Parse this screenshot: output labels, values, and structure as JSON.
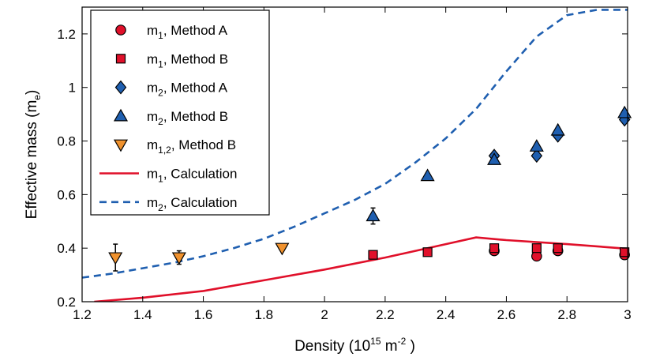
{
  "chart_data": {
    "type": "scatter",
    "title": "",
    "xlabel": {
      "prefix": "Density (10",
      "exp": "15",
      "mid": " m",
      "exp2": "-2",
      "suffix": " )"
    },
    "ylabel": {
      "base": "Effective mass (m",
      "sub": "e",
      "suffix": ")"
    },
    "xlim": [
      1.2,
      3.0
    ],
    "ylim": [
      0.2,
      1.3
    ],
    "xticks": [
      "1.2",
      "1.4",
      "1.6",
      "1.8",
      "2",
      "2.2",
      "2.4",
      "2.6",
      "2.8",
      "3"
    ],
    "yticks": [
      "0.2",
      "0.4",
      "0.6",
      "0.8",
      "1",
      "1.2"
    ],
    "xtick_values": [
      1.2,
      1.4,
      1.6,
      1.8,
      2.0,
      2.2,
      2.4,
      2.6,
      2.8,
      3.0
    ],
    "ytick_values": [
      0.2,
      0.4,
      0.6,
      0.8,
      1.0,
      1.2
    ],
    "legend_position": "top-left",
    "series": [
      {
        "name": "m1, Method A",
        "label_base": "m",
        "label_sub": "1",
        "label_rest": ", Method A",
        "marker": "circle",
        "color": "#e0102a",
        "points": [
          [
            2.56,
            0.39
          ],
          [
            2.7,
            0.37
          ],
          [
            2.77,
            0.39
          ],
          [
            2.99,
            0.375
          ]
        ],
        "errors": [
          0,
          0,
          0,
          0
        ]
      },
      {
        "name": "m1, Method B",
        "label_base": "m",
        "label_sub": "1",
        "label_rest": ", Method B",
        "marker": "square",
        "color": "#e0102a",
        "points": [
          [
            2.16,
            0.375
          ],
          [
            2.34,
            0.385
          ],
          [
            2.56,
            0.4
          ],
          [
            2.7,
            0.4
          ],
          [
            2.77,
            0.4
          ],
          [
            2.99,
            0.385
          ]
        ],
        "errors": [
          0.015,
          0,
          0,
          0,
          0,
          0
        ]
      },
      {
        "name": "m2, Method A",
        "label_base": "m",
        "label_sub": "2",
        "label_rest": ", Method A",
        "marker": "diamond",
        "color": "#1f5fb0",
        "points": [
          [
            2.56,
            0.745
          ],
          [
            2.7,
            0.745
          ],
          [
            2.77,
            0.82
          ],
          [
            2.99,
            0.88
          ]
        ],
        "errors": [
          0,
          0,
          0,
          0
        ]
      },
      {
        "name": "m2, Method B",
        "label_base": "m",
        "label_sub": "2",
        "label_rest": ", Method B",
        "marker": "triangle-up",
        "color": "#1f5fb0",
        "points": [
          [
            2.16,
            0.52
          ],
          [
            2.34,
            0.67
          ],
          [
            2.56,
            0.73
          ],
          [
            2.7,
            0.78
          ],
          [
            2.77,
            0.84
          ],
          [
            2.99,
            0.905
          ]
        ],
        "errors": [
          0.03,
          0,
          0,
          0,
          0,
          0
        ]
      },
      {
        "name": "m1,2, Method B",
        "label_base": "m",
        "label_sub": "1,2",
        "label_rest": ", Method B",
        "marker": "triangle-down",
        "color": "#f0922e",
        "points": [
          [
            1.31,
            0.365
          ],
          [
            1.52,
            0.365
          ],
          [
            1.86,
            0.4
          ]
        ],
        "errors": [
          0.05,
          0.025,
          0
        ]
      },
      {
        "name": "m1, Calculation",
        "label_base": "m",
        "label_sub": "1",
        "label_rest": ", Calculation",
        "line": "solid",
        "color": "#e0102a",
        "x": [
          1.24,
          1.4,
          1.6,
          1.8,
          2.0,
          2.2,
          2.4,
          2.5,
          2.6,
          2.8,
          3.0
        ],
        "y": [
          0.2,
          0.215,
          0.24,
          0.28,
          0.32,
          0.365,
          0.415,
          0.44,
          0.43,
          0.415,
          0.398
        ]
      },
      {
        "name": "m2, Calculation",
        "label_base": "m",
        "label_sub": "2",
        "label_rest": ", Calculation",
        "line": "dashed",
        "color": "#1f5fb0",
        "x": [
          1.2,
          1.3,
          1.4,
          1.5,
          1.6,
          1.7,
          1.8,
          1.9,
          2.0,
          2.1,
          2.2,
          2.3,
          2.4,
          2.5,
          2.6,
          2.7,
          2.8,
          2.9,
          3.0
        ],
        "y": [
          0.29,
          0.305,
          0.325,
          0.345,
          0.37,
          0.4,
          0.435,
          0.48,
          0.53,
          0.58,
          0.64,
          0.72,
          0.81,
          0.92,
          1.06,
          1.19,
          1.27,
          1.29,
          1.29
        ]
      }
    ]
  }
}
